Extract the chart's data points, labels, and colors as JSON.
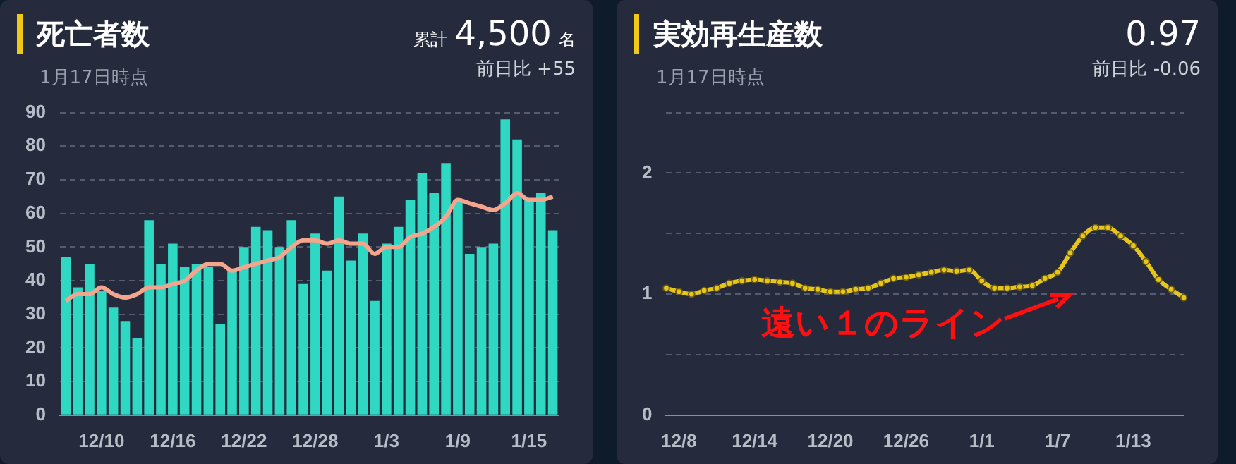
{
  "chart_data": [
    {
      "type": "bar",
      "title": "死亡者数",
      "subtitle": "1月17日時点",
      "annotations": [
        "累計 4,500 名",
        "前日比 +55"
      ],
      "categories": [
        null,
        null,
        null,
        "12/10",
        null,
        null,
        null,
        null,
        null,
        "12/16",
        null,
        null,
        null,
        null,
        null,
        "12/22",
        null,
        null,
        null,
        null,
        null,
        "12/28",
        null,
        null,
        null,
        null,
        null,
        "1/3",
        null,
        null,
        null,
        null,
        null,
        "1/9",
        null,
        null,
        null,
        null,
        null,
        "1/15",
        null,
        null
      ],
      "series": [
        {
          "color": "#2ed8c3",
          "values": [
            47,
            38,
            45,
            37,
            32,
            28,
            23,
            58,
            45,
            51,
            44,
            45,
            44,
            27,
            43,
            50,
            56,
            55,
            50,
            58,
            39,
            54,
            43,
            65,
            46,
            54,
            34,
            51,
            56,
            64,
            72,
            66,
            75,
            64,
            48,
            50,
            51,
            88,
            82,
            64,
            66,
            55
          ]
        },
        {
          "type": "line",
          "color": "#f4a58e",
          "values": [
            34,
            36,
            36,
            38,
            36,
            35,
            36,
            38,
            38,
            39,
            40,
            43,
            45,
            45,
            43,
            44,
            45,
            46,
            47,
            50,
            52,
            52,
            51,
            52,
            51,
            51,
            48,
            50,
            50,
            53,
            54,
            56,
            59,
            64,
            63,
            62,
            61,
            63,
            66,
            64,
            64,
            65
          ]
        }
      ],
      "ylim": [
        0,
        90
      ],
      "yticks": [
        0,
        10,
        20,
        30,
        40,
        50,
        60,
        70,
        80,
        90
      ],
      "grid": "y",
      "legend": false
    },
    {
      "type": "line",
      "title": "実効再生産数",
      "subtitle": "1月17日時点",
      "annotations": [
        "0.97",
        "前日比 -0.06",
        "遠い１のライン"
      ],
      "categories": [
        null,
        "12/8",
        null,
        null,
        null,
        null,
        null,
        "12/14",
        null,
        null,
        null,
        null,
        null,
        "12/20",
        null,
        null,
        null,
        null,
        null,
        "12/26",
        null,
        null,
        null,
        null,
        null,
        "1/1",
        null,
        null,
        null,
        null,
        null,
        "1/7",
        null,
        null,
        null,
        null,
        null,
        "1/13",
        null,
        null,
        null,
        null
      ],
      "series": [
        {
          "color": "#e6c619",
          "values": [
            1.05,
            1.02,
            1.0,
            1.03,
            1.05,
            1.09,
            1.11,
            1.12,
            1.11,
            1.1,
            1.09,
            1.05,
            1.04,
            1.02,
            1.02,
            1.04,
            1.05,
            1.09,
            1.13,
            1.14,
            1.16,
            1.18,
            1.2,
            1.19,
            1.2,
            1.11,
            1.05,
            1.05,
            1.06,
            1.07,
            1.13,
            1.18,
            1.34,
            1.48,
            1.55,
            1.55,
            1.48,
            1.4,
            1.27,
            1.12,
            1.04,
            0.97
          ]
        }
      ],
      "ylim": [
        0,
        2.5
      ],
      "yticks": [
        0,
        {
          "value": 0.5,
          "label": null
        },
        1,
        {
          "value": 1.5,
          "label": null
        },
        2,
        {
          "value": 2.5,
          "label": null
        }
      ],
      "grid": "y",
      "legend": false,
      "marker": "circle",
      "line_style": "solid"
    }
  ]
}
